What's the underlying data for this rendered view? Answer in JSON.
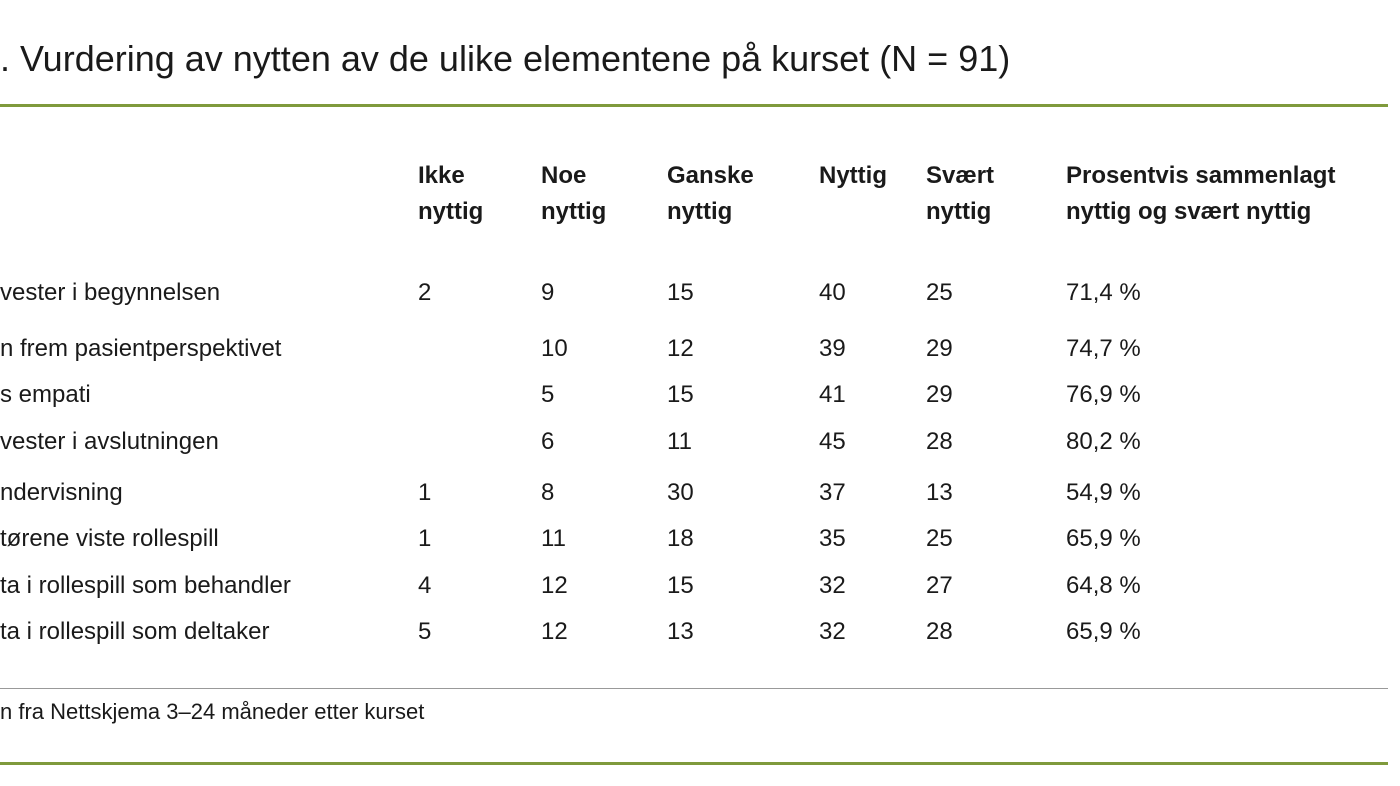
{
  "title": ". Vurdering av nytten av de ulike elementene på kurset (N = 91)",
  "table": {
    "headers": [
      [
        "Ikke",
        "nyttig"
      ],
      [
        "Noe",
        "nyttig"
      ],
      [
        "Ganske",
        "nyttig"
      ],
      [
        "Nyttig"
      ],
      [
        "Svært",
        "nyttig"
      ],
      [
        "Prosentvis sammenlagt",
        "nyttig og svært nyttig"
      ]
    ],
    "rows": [
      [
        "vester i begynnelsen",
        2,
        9,
        15,
        40,
        25,
        "71,4 %"
      ],
      [
        "n frem pasientperspektivet",
        null,
        10,
        12,
        39,
        29,
        "74,7 %"
      ],
      [
        "s empati",
        null,
        5,
        15,
        41,
        29,
        "76,9 %"
      ],
      [
        "vester i avslutningen",
        null,
        6,
        11,
        45,
        28,
        "80,2 %"
      ],
      [
        "ndervisning",
        1,
        8,
        30,
        37,
        13,
        "54,9 %"
      ],
      [
        "tørene viste rollespill",
        1,
        11,
        18,
        35,
        25,
        "65,9 %"
      ],
      [
        "ta i rollespill som behandler",
        4,
        12,
        15,
        32,
        27,
        "64,8 %"
      ],
      [
        "ta i rollespill som deltaker",
        5,
        12,
        13,
        32,
        28,
        "65,9 %"
      ]
    ]
  },
  "footer": "n fra Nettskjema 3–24 måneder etter kurset"
}
